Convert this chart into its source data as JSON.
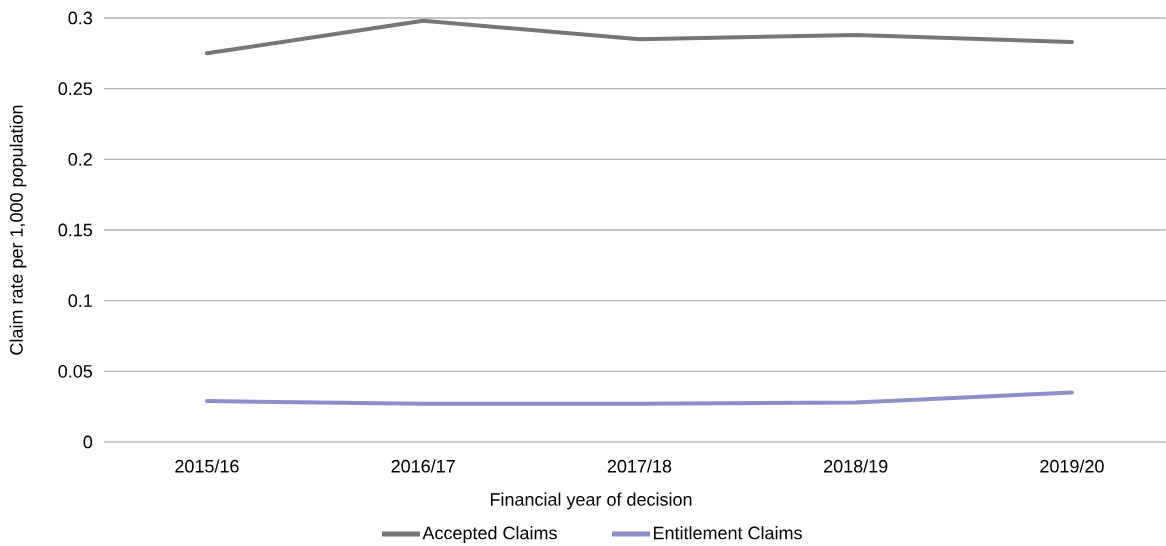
{
  "chart_data": {
    "type": "line",
    "xlabel": "Financial year of decision",
    "ylabel": "Claim rate per 1,000 population",
    "categories": [
      "2015/16",
      "2016/17",
      "2017/18",
      "2018/19",
      "2019/20"
    ],
    "series": [
      {
        "name": "Accepted Claims",
        "color": "#767676",
        "values": [
          0.275,
          0.298,
          0.285,
          0.288,
          0.283
        ]
      },
      {
        "name": "Entitlement Claims",
        "color": "#8d8fc7",
        "values": [
          0.029,
          0.027,
          0.027,
          0.028,
          0.035
        ]
      }
    ],
    "ylim": [
      0,
      0.3
    ],
    "yticks": [
      0,
      0.05,
      0.1,
      0.15,
      0.2,
      0.25,
      0.3
    ],
    "grid": "y",
    "legend": "bottom",
    "marker": "none",
    "line_style": "solid"
  }
}
